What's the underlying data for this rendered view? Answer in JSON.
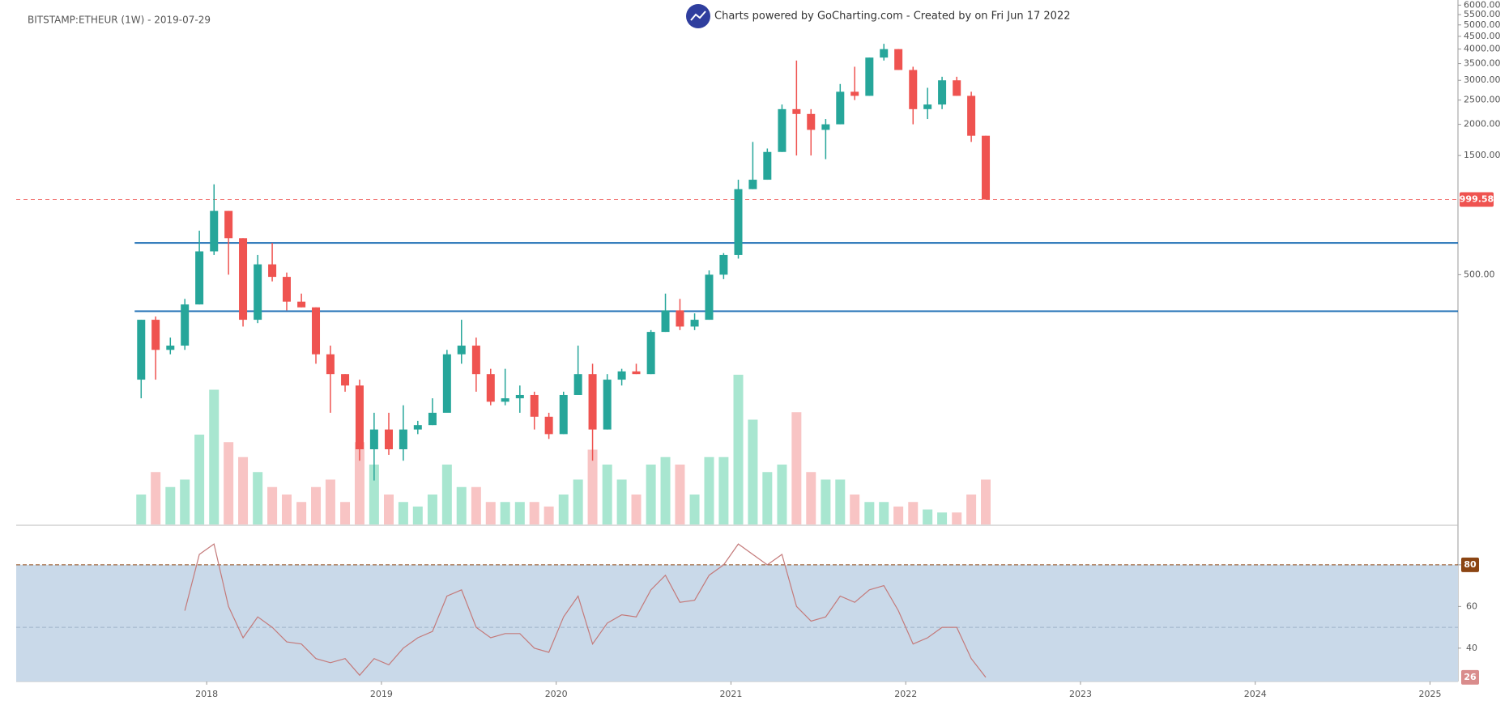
{
  "chart_data": [
    {
      "type": "candlestick",
      "title": "BITSTAMP:ETHEUR (1W) - 2019-07-29",
      "subtitle": "Charts powered by GoCharting.com - Created by  on Fri Jun 17 2022",
      "x": [
        2017.625,
        2017.708,
        2017.792,
        2017.875,
        2017.958,
        2018.042,
        2018.125,
        2018.208,
        2018.292,
        2018.375,
        2018.458,
        2018.542,
        2018.625,
        2018.708,
        2018.792,
        2018.875,
        2018.958,
        2019.042,
        2019.125,
        2019.208,
        2019.292,
        2019.375,
        2019.458,
        2019.542,
        2019.625,
        2019.708,
        2019.792,
        2019.875,
        2019.958,
        2020.042,
        2020.125,
        2020.208,
        2020.292,
        2020.375,
        2020.458,
        2020.542,
        2020.625,
        2020.708,
        2020.792,
        2020.875,
        2020.958,
        2021.042,
        2021.125,
        2021.208,
        2021.292,
        2021.375,
        2021.458,
        2021.542,
        2021.625,
        2021.708,
        2021.792,
        2021.875,
        2021.958,
        2022.042,
        2022.125,
        2022.208,
        2022.292,
        2022.375,
        2022.458
      ],
      "open": [
        190,
        330,
        250,
        260,
        380,
        620,
        900,
        700,
        330,
        550,
        490,
        390,
        370,
        240,
        200,
        180,
        100,
        120,
        100,
        120,
        125,
        140,
        240,
        260,
        200,
        155,
        160,
        165,
        135,
        115,
        165,
        200,
        120,
        190,
        205,
        200,
        295,
        360,
        310,
        330,
        500,
        600,
        1100,
        1200,
        1550,
        2300,
        2200,
        1900,
        2000,
        2700,
        2600,
        3700,
        4000,
        3300,
        2300,
        2400,
        3000,
        2600,
        1800
      ],
      "high": [
        330,
        340,
        280,
        400,
        750,
        1150,
        900,
        700,
        600,
        670,
        510,
        420,
        370,
        260,
        200,
        190,
        140,
        140,
        150,
        130,
        160,
        250,
        330,
        280,
        210,
        210,
        180,
        170,
        140,
        170,
        260,
        220,
        200,
        210,
        220,
        300,
        420,
        400,
        350,
        520,
        610,
        1200,
        1700,
        1600,
        2400,
        3600,
        2300,
        2100,
        2900,
        3400,
        3700,
        4200,
        4000,
        3400,
        2800,
        3100,
        3100,
        2700,
        1800
      ],
      "low": [
        160,
        190,
        240,
        250,
        380,
        600,
        500,
        310,
        320,
        470,
        360,
        370,
        220,
        140,
        170,
        90,
        75,
        95,
        90,
        115,
        125,
        140,
        220,
        170,
        150,
        150,
        140,
        120,
        110,
        115,
        165,
        90,
        120,
        180,
        200,
        200,
        295,
        300,
        300,
        330,
        480,
        580,
        1100,
        1200,
        1550,
        1500,
        1500,
        1450,
        2000,
        2500,
        2600,
        3600,
        3300,
        2000,
        2100,
        2300,
        2600,
        1700,
        999.58
      ],
      "close": [
        330,
        250,
        260,
        380,
        620,
        900,
        700,
        330,
        550,
        490,
        390,
        370,
        240,
        200,
        180,
        100,
        120,
        100,
        120,
        125,
        140,
        240,
        260,
        200,
        155,
        160,
        165,
        135,
        115,
        165,
        200,
        120,
        190,
        205,
        200,
        295,
        360,
        310,
        330,
        500,
        600,
        1100,
        1200,
        1550,
        2300,
        2200,
        1900,
        2000,
        2700,
        2600,
        3700,
        4000,
        3300,
        2300,
        2400,
        3000,
        2600,
        1800,
        999.58
      ],
      "volume": [
        20,
        35,
        25,
        30,
        60,
        90,
        55,
        45,
        35,
        25,
        20,
        15,
        25,
        30,
        15,
        55,
        40,
        20,
        15,
        12,
        20,
        40,
        25,
        25,
        15,
        15,
        15,
        15,
        12,
        20,
        30,
        50,
        40,
        30,
        20,
        40,
        45,
        40,
        20,
        45,
        45,
        100,
        70,
        35,
        40,
        75,
        35,
        30,
        30,
        20,
        15,
        15,
        12,
        15,
        10,
        8,
        8,
        20,
        30
      ],
      "up_color": "#26a69a",
      "down_color": "#ef5350",
      "volume_up_color": "#a8e6d0",
      "volume_down_color": "#f8c4c4",
      "log_scale": true,
      "ylim": [
        50,
        6290
      ],
      "yticks": [
        {
          "value": 500,
          "label": "500.00"
        },
        {
          "value": 1500,
          "label": "1500.00"
        },
        {
          "value": 2000,
          "label": "2000.00"
        },
        {
          "value": 2500,
          "label": "2500.00"
        },
        {
          "value": 3000,
          "label": "3000.00"
        },
        {
          "value": 3500,
          "label": "3500.00"
        },
        {
          "value": 4000,
          "label": "4000.00"
        },
        {
          "value": 4500,
          "label": "4500.00"
        },
        {
          "value": 5000,
          "label": "5000.00"
        },
        {
          "value": 5500,
          "label": "5500.00"
        },
        {
          "value": 6000,
          "label": "6000.00"
        }
      ],
      "last_price": {
        "value": 999.58,
        "label": "999.58"
      },
      "levels": [
        670,
        357
      ],
      "level_color": "#1f6fb5",
      "xlim": [
        2016.91,
        2025.16
      ],
      "xticks": [
        2018,
        2019,
        2020,
        2021,
        2022,
        2023,
        2024,
        2025
      ]
    },
    {
      "type": "line",
      "values": [
        null,
        null,
        null,
        58,
        85,
        90,
        60,
        45,
        55,
        50,
        43,
        42,
        35,
        33,
        35,
        27,
        35,
        32,
        40,
        45,
        48,
        65,
        68,
        50,
        45,
        47,
        47,
        40,
        38,
        55,
        65,
        42,
        52,
        56,
        55,
        68,
        75,
        62,
        63,
        75,
        80,
        90,
        85,
        80,
        85,
        60,
        53,
        55,
        65,
        62,
        68,
        70,
        58,
        42,
        45,
        50,
        50,
        35,
        26
      ],
      "color": "#c47a7a",
      "ylim": [
        24,
        98.6
      ],
      "yticks": [
        40,
        60,
        80
      ],
      "overbought": 80,
      "midline": 50,
      "band_color": "#c9d9e9"
    }
  ]
}
